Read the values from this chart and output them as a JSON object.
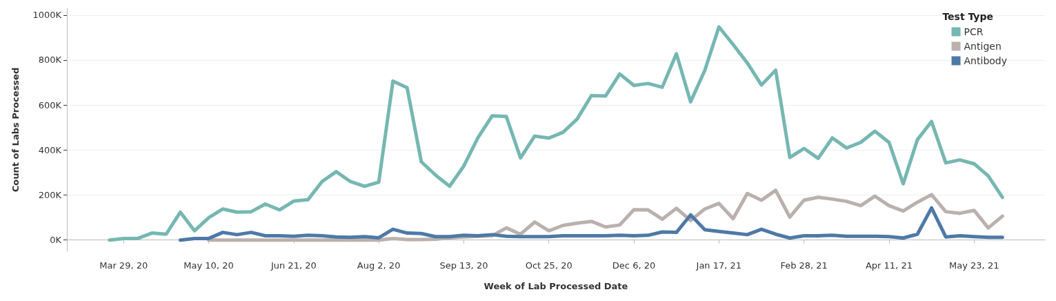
{
  "chart_data": {
    "type": "line",
    "xlabel": "Week of Lab Processed Date",
    "ylabel": "Count of Labs Processed",
    "legend_title": "Test Type",
    "legend": "top right",
    "grid": "y",
    "marker": "none",
    "line_style": "solid",
    "x": [
      "2020-03-22",
      "2020-03-29",
      "2020-04-05",
      "2020-04-12",
      "2020-04-19",
      "2020-04-26",
      "2020-05-03",
      "2020-05-10",
      "2020-05-17",
      "2020-05-24",
      "2020-05-31",
      "2020-06-07",
      "2020-06-14",
      "2020-06-21",
      "2020-06-28",
      "2020-07-05",
      "2020-07-12",
      "2020-07-19",
      "2020-07-26",
      "2020-08-02",
      "2020-08-09",
      "2020-08-16",
      "2020-08-23",
      "2020-08-30",
      "2020-09-06",
      "2020-09-13",
      "2020-09-20",
      "2020-09-27",
      "2020-10-04",
      "2020-10-11",
      "2020-10-18",
      "2020-10-25",
      "2020-11-01",
      "2020-11-08",
      "2020-11-15",
      "2020-11-22",
      "2020-11-29",
      "2020-12-06",
      "2020-12-13",
      "2020-12-20",
      "2020-12-27",
      "2021-01-03",
      "2021-01-10",
      "2021-01-17",
      "2021-01-24",
      "2021-01-31",
      "2021-02-07",
      "2021-02-14",
      "2021-02-21",
      "2021-02-28",
      "2021-03-07",
      "2021-03-14",
      "2021-03-21",
      "2021-03-28",
      "2021-04-04",
      "2021-04-11",
      "2021-04-18",
      "2021-04-25",
      "2021-05-02",
      "2021-05-09",
      "2021-05-16",
      "2021-05-23",
      "2021-05-30",
      "2021-06-06"
    ],
    "xlim": [
      "2020-03-01",
      "2021-06-27"
    ],
    "xticks": [
      {
        "value": "2020-03-29",
        "label": "Mar 29, 20"
      },
      {
        "value": "2020-05-10",
        "label": "May 10, 20"
      },
      {
        "value": "2020-06-21",
        "label": "Jun 21, 20"
      },
      {
        "value": "2020-08-02",
        "label": "Aug 2, 20"
      },
      {
        "value": "2020-09-13",
        "label": "Sep 13, 20"
      },
      {
        "value": "2020-10-25",
        "label": "Oct 25, 20"
      },
      {
        "value": "2020-12-06",
        "label": "Dec 6, 20"
      },
      {
        "value": "2021-01-17",
        "label": "Jan 17, 21"
      },
      {
        "value": "2021-02-28",
        "label": "Feb 28, 21"
      },
      {
        "value": "2021-04-11",
        "label": "Apr 11, 21"
      },
      {
        "value": "2021-05-23",
        "label": "May 23, 21"
      }
    ],
    "ylim": [
      -50000,
      1030000
    ],
    "yticks": [
      {
        "value": 0,
        "label": "0K"
      },
      {
        "value": 200000,
        "label": "200K"
      },
      {
        "value": 400000,
        "label": "400K"
      },
      {
        "value": 600000,
        "label": "600K"
      },
      {
        "value": 800000,
        "label": "800K"
      },
      {
        "value": 1000000,
        "label": "1000K"
      }
    ],
    "series": [
      {
        "name": "PCR",
        "color": "#76b7b2",
        "values": [
          0,
          7000,
          7000,
          31000,
          26000,
          124000,
          41000,
          99000,
          138000,
          124000,
          126000,
          160000,
          134000,
          173000,
          179000,
          260000,
          304000,
          260000,
          239000,
          257000,
          706000,
          677000,
          348000,
          289000,
          239000,
          329000,
          455000,
          552000,
          549000,
          365000,
          462000,
          453000,
          479000,
          538000,
          642000,
          640000,
          738000,
          687000,
          696000,
          679000,
          828000,
          614000,
          754000,
          947000,
          869000,
          787000,
          689000,
          755000,
          367000,
          407000,
          363000,
          454000,
          409000,
          434000,
          484000,
          434000,
          250000,
          446000,
          527000,
          343000,
          356000,
          339000,
          285000,
          190000
        ]
      },
      {
        "name": "Antigen",
        "color": "#bab0ac",
        "values": [
          null,
          null,
          null,
          null,
          null,
          null,
          null,
          0,
          0,
          0,
          0,
          0,
          0,
          0,
          0,
          0,
          0,
          0,
          0,
          0,
          7000,
          2000,
          2000,
          4000,
          10000,
          14000,
          17000,
          19000,
          54000,
          26000,
          80000,
          41000,
          65000,
          75000,
          83000,
          58000,
          67000,
          135000,
          134000,
          93000,
          141000,
          87000,
          138000,
          163000,
          95000,
          207000,
          177000,
          221000,
          102000,
          177000,
          190000,
          182000,
          172000,
          153000,
          195000,
          153000,
          129000,
          168000,
          202000,
          126000,
          119000,
          132000,
          54000,
          106000
        ]
      },
      {
        "name": "Antibody",
        "color": "#4e79a7",
        "values": [
          null,
          null,
          null,
          null,
          null,
          0,
          7000,
          7000,
          34000,
          24000,
          34000,
          19000,
          19000,
          17000,
          21000,
          19000,
          14000,
          12000,
          15000,
          10000,
          48000,
          31000,
          29000,
          15000,
          15000,
          21000,
          19000,
          24000,
          17000,
          15000,
          15000,
          15000,
          19000,
          19000,
          19000,
          19000,
          21000,
          19000,
          21000,
          36000,
          34000,
          112000,
          46000,
          38000,
          31000,
          24000,
          48000,
          26000,
          9000,
          19000,
          19000,
          21000,
          17000,
          17000,
          17000,
          15000,
          9000,
          26000,
          143000,
          14000,
          19000,
          15000,
          12000,
          12000
        ]
      }
    ]
  }
}
